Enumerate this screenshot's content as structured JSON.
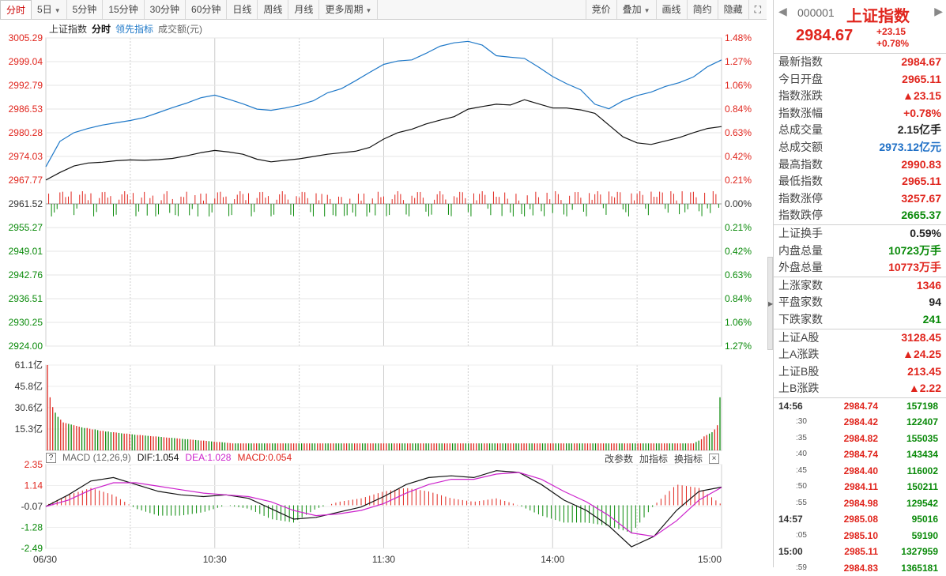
{
  "toolbar": {
    "left": [
      "分时",
      "5日",
      "5分钟",
      "15分钟",
      "30分钟",
      "60分钟",
      "日线",
      "周线",
      "月线",
      "更多周期"
    ],
    "right": [
      "竞价",
      "叠加",
      "画线",
      "简约",
      "隐藏"
    ]
  },
  "legend": {
    "name": "上证指数",
    "mode": "分时",
    "lead": "领先指标",
    "volume": "成交额(元)"
  },
  "macd": {
    "title": "MACD (12,26,9)",
    "dif_label": "DIF:1.054",
    "dea_label": "DEA:1.028",
    "macd_label": "MACD:0.054",
    "tools": [
      "改参数",
      "加指标",
      "换指标"
    ]
  },
  "colors": {
    "up": "#e0251d",
    "down": "#0a8a0a",
    "lead": "#1e78c8",
    "price": "#111111",
    "dea": "#cc22cc"
  },
  "chart_data": [
    {
      "type": "line",
      "title": "上证指数 分时",
      "x_ticks": [
        "06/30",
        "10:30",
        "11:30",
        "14:00",
        "15:00"
      ],
      "price_ticks": [
        "3005.29",
        "2999.04",
        "2992.79",
        "2986.53",
        "2980.28",
        "2974.03",
        "2967.77",
        "2961.52",
        "2955.27",
        "2949.01",
        "2942.76",
        "2936.51",
        "2930.25",
        "2924.00"
      ],
      "pct_ticks": [
        "1.48%",
        "1.27%",
        "1.06%",
        "0.84%",
        "0.63%",
        "0.42%",
        "0.21%",
        "0.00%",
        "0.21%",
        "0.42%",
        "0.63%",
        "0.84%",
        "1.06%",
        "1.27%"
      ],
      "ylim": [
        2924.0,
        3005.29
      ],
      "prev_close": 2961.52,
      "series": [
        {
          "name": "上证指数",
          "points": [
            [
              0,
              2967.8
            ],
            [
              5,
              2969.8
            ],
            [
              10,
              2971.5
            ],
            [
              15,
              2972.3
            ],
            [
              20,
              2972.5
            ],
            [
              25,
              2972.9
            ],
            [
              30,
              2973.1
            ],
            [
              35,
              2973.0
            ],
            [
              40,
              2973.2
            ],
            [
              45,
              2973.5
            ],
            [
              50,
              2974.2
            ],
            [
              55,
              2975.0
            ],
            [
              60,
              2975.6
            ],
            [
              65,
              2975.2
            ],
            [
              70,
              2974.6
            ],
            [
              75,
              2973.3
            ],
            [
              80,
              2972.6
            ],
            [
              85,
              2973.0
            ],
            [
              90,
              2973.4
            ],
            [
              95,
              2974.0
            ],
            [
              100,
              2974.6
            ],
            [
              105,
              2975.0
            ],
            [
              110,
              2975.4
            ],
            [
              115,
              2976.4
            ],
            [
              120,
              2978.6
            ],
            [
              125,
              2980.3
            ],
            [
              130,
              2981.2
            ],
            [
              135,
              2982.6
            ],
            [
              140,
              2983.6
            ],
            [
              145,
              2984.5
            ],
            [
              150,
              2986.5
            ],
            [
              155,
              2987.2
            ],
            [
              160,
              2987.8
            ],
            [
              165,
              2987.6
            ],
            [
              170,
              2989.0
            ],
            [
              175,
              2987.9
            ],
            [
              180,
              2986.8
            ],
            [
              185,
              2986.8
            ],
            [
              190,
              2986.3
            ],
            [
              195,
              2985.4
            ],
            [
              200,
              2982.3
            ],
            [
              205,
              2979.2
            ],
            [
              210,
              2977.6
            ],
            [
              215,
              2977.2
            ],
            [
              220,
              2978.1
            ],
            [
              225,
              2979.0
            ],
            [
              230,
              2980.3
            ],
            [
              235,
              2981.4
            ],
            [
              240,
              2981.9
            ]
          ]
        },
        {
          "name": "领先指标",
          "points": [
            [
              0,
              2971.3
            ],
            [
              5,
              2978.0
            ],
            [
              10,
              2980.3
            ],
            [
              15,
              2981.4
            ],
            [
              20,
              2982.3
            ],
            [
              25,
              2982.9
            ],
            [
              30,
              2983.5
            ],
            [
              35,
              2984.3
            ],
            [
              40,
              2985.6
            ],
            [
              45,
              2986.9
            ],
            [
              50,
              2988.1
            ],
            [
              55,
              2989.5
            ],
            [
              60,
              2990.2
            ],
            [
              65,
              2989.1
            ],
            [
              70,
              2987.9
            ],
            [
              75,
              2986.5
            ],
            [
              80,
              2986.2
            ],
            [
              85,
              2986.8
            ],
            [
              90,
              2987.6
            ],
            [
              95,
              2988.7
            ],
            [
              100,
              2990.8
            ],
            [
              105,
              2991.9
            ],
            [
              110,
              2994.0
            ],
            [
              115,
              2996.2
            ],
            [
              120,
              2998.3
            ],
            [
              125,
              2999.2
            ],
            [
              130,
              2999.5
            ],
            [
              135,
              3001.2
            ],
            [
              140,
              3003.1
            ],
            [
              145,
              3004.0
            ],
            [
              150,
              3004.4
            ],
            [
              155,
              3003.4
            ],
            [
              160,
              3000.6
            ],
            [
              165,
              3000.2
            ],
            [
              170,
              2999.9
            ],
            [
              175,
              2997.6
            ],
            [
              180,
              2995.1
            ],
            [
              185,
              2993.2
            ],
            [
              190,
              2991.6
            ],
            [
              195,
              2987.8
            ],
            [
              200,
              2986.6
            ],
            [
              205,
              2988.7
            ],
            [
              210,
              2990.1
            ],
            [
              215,
              2991.0
            ],
            [
              220,
              2992.5
            ],
            [
              225,
              2993.5
            ],
            [
              230,
              2995.0
            ],
            [
              235,
              2997.7
            ],
            [
              240,
              2999.5
            ]
          ]
        }
      ]
    },
    {
      "type": "bar",
      "title": "成交额",
      "y_ticks": [
        "61.1亿",
        "45.8亿",
        "30.6亿",
        "15.3亿"
      ],
      "ylim": [
        0,
        61.1
      ],
      "unit": "亿",
      "values": [
        61.1,
        38,
        31,
        27,
        24,
        22,
        20,
        19.5,
        19,
        18.5,
        18,
        17.5,
        17,
        16.5,
        16,
        16,
        15.5,
        15,
        15,
        14.5,
        14,
        14,
        13.5,
        13.5,
        13,
        13,
        12.8,
        12.5,
        12.2,
        12,
        12,
        11.8,
        11.5,
        11.2,
        11,
        11,
        10.8,
        10.6,
        10.4,
        10.2,
        10,
        10,
        9.8,
        9.6,
        9.4,
        9.2,
        9,
        9,
        8.8,
        8.6,
        8.4,
        8.2,
        8,
        8,
        7.8,
        7.6,
        7.4,
        7.2,
        7,
        7,
        6.8,
        6.6,
        6.4,
        6.2,
        6,
        6,
        5.8,
        5.6,
        5.4,
        5.2,
        5,
        5,
        5,
        5,
        5,
        5,
        5,
        5,
        5,
        5,
        5,
        5,
        5,
        5,
        5,
        5,
        5,
        5,
        5,
        5,
        5,
        5,
        5,
        5,
        5,
        5,
        5,
        5,
        5,
        5,
        5,
        5,
        5,
        5,
        5,
        5,
        5,
        5,
        5,
        5,
        5,
        5,
        5,
        5,
        5,
        5,
        5,
        5,
        5,
        5,
        5,
        5,
        5,
        5,
        5,
        5,
        5,
        5,
        5,
        5,
        5,
        5,
        5,
        5,
        5,
        5,
        5,
        5,
        5,
        5,
        5,
        5,
        5,
        5,
        5,
        5,
        5,
        5,
        5,
        5,
        5,
        5,
        5,
        5,
        5,
        5,
        5,
        5,
        5,
        5,
        5,
        5,
        5,
        5,
        5,
        5,
        5,
        5,
        5,
        5,
        5,
        5,
        5,
        5,
        5,
        5,
        5,
        5,
        5,
        5,
        5,
        5,
        5,
        5,
        5,
        5,
        5,
        5,
        5,
        5,
        5,
        5,
        5,
        5,
        5,
        5,
        5,
        5,
        5,
        5,
        5,
        5,
        5,
        5,
        5,
        5,
        5,
        5,
        5,
        5,
        5,
        5,
        5,
        5,
        5,
        5,
        5,
        5,
        5,
        5,
        5,
        5,
        5,
        5,
        5,
        5,
        5,
        5,
        5,
        5,
        5,
        5,
        5,
        5,
        5,
        5,
        5,
        5,
        5,
        5,
        5,
        5,
        5,
        5,
        5,
        6,
        7,
        8,
        10,
        11,
        12,
        13,
        15,
        18,
        38
      ]
    },
    {
      "type": "line",
      "title": "MACD",
      "y_ticks": [
        "2.35",
        "1.14",
        "-0.07",
        "-1.28",
        "-2.49"
      ],
      "ylim": [
        -2.49,
        2.35
      ],
      "series": [
        {
          "name": "DIF",
          "points": [
            [
              0,
              -0.07
            ],
            [
              8,
              0.6
            ],
            [
              16,
              1.4
            ],
            [
              24,
              1.6
            ],
            [
              32,
              1.2
            ],
            [
              40,
              0.8
            ],
            [
              48,
              0.6
            ],
            [
              56,
              0.5
            ],
            [
              64,
              0.6
            ],
            [
              72,
              0.4
            ],
            [
              80,
              -0.2
            ],
            [
              88,
              -0.8
            ],
            [
              96,
              -0.7
            ],
            [
              104,
              -0.4
            ],
            [
              112,
              -0.1
            ],
            [
              120,
              0.5
            ],
            [
              128,
              1.2
            ],
            [
              136,
              1.6
            ],
            [
              144,
              1.7
            ],
            [
              152,
              1.6
            ],
            [
              160,
              2.0
            ],
            [
              168,
              1.9
            ],
            [
              176,
              1.2
            ],
            [
              184,
              0.3
            ],
            [
              192,
              -0.3
            ],
            [
              200,
              -1.2
            ],
            [
              208,
              -2.4
            ],
            [
              216,
              -1.8
            ],
            [
              224,
              -0.3
            ],
            [
              232,
              0.8
            ],
            [
              240,
              1.05
            ]
          ]
        },
        {
          "name": "DEA",
          "points": [
            [
              0,
              -0.07
            ],
            [
              8,
              0.3
            ],
            [
              16,
              0.9
            ],
            [
              24,
              1.3
            ],
            [
              32,
              1.3
            ],
            [
              40,
              1.1
            ],
            [
              48,
              0.9
            ],
            [
              56,
              0.7
            ],
            [
              64,
              0.6
            ],
            [
              72,
              0.5
            ],
            [
              80,
              0.2
            ],
            [
              88,
              -0.3
            ],
            [
              96,
              -0.6
            ],
            [
              104,
              -0.5
            ],
            [
              112,
              -0.3
            ],
            [
              120,
              0.1
            ],
            [
              128,
              0.7
            ],
            [
              136,
              1.2
            ],
            [
              144,
              1.5
            ],
            [
              152,
              1.5
            ],
            [
              160,
              1.8
            ],
            [
              168,
              1.9
            ],
            [
              176,
              1.5
            ],
            [
              184,
              0.8
            ],
            [
              192,
              0.2
            ],
            [
              200,
              -0.6
            ],
            [
              208,
              -1.6
            ],
            [
              216,
              -1.8
            ],
            [
              224,
              -0.9
            ],
            [
              232,
              0.3
            ],
            [
              240,
              1.03
            ]
          ]
        }
      ]
    }
  ],
  "side": {
    "code": "000001",
    "name": "上证指数",
    "price": "2984.67",
    "change": "+23.15",
    "change_pct": "+0.78%",
    "group1": [
      {
        "label": "最新指数",
        "value": "2984.67",
        "color": "red"
      },
      {
        "label": "今日开盘",
        "value": "2965.11",
        "color": "red"
      },
      {
        "label": "指数涨跌",
        "value": "▲23.15",
        "color": "red"
      },
      {
        "label": "指数涨幅",
        "value": "+0.78%",
        "color": "red"
      },
      {
        "label": "总成交量",
        "value": "2.15亿手",
        "color": "black"
      },
      {
        "label": "总成交额",
        "value": "2973.12亿元",
        "color": "blue"
      },
      {
        "label": "最高指数",
        "value": "2990.83",
        "color": "red"
      },
      {
        "label": "最低指数",
        "value": "2965.11",
        "color": "red"
      },
      {
        "label": "指数涨停",
        "value": "3257.67",
        "color": "red"
      },
      {
        "label": "指数跌停",
        "value": "2665.37",
        "color": "green"
      }
    ],
    "group2": [
      {
        "label": "上证换手",
        "value": "0.59%",
        "color": "black"
      },
      {
        "label": "内盘总量",
        "value": "10723万手",
        "color": "green"
      },
      {
        "label": "外盘总量",
        "value": "10773万手",
        "color": "red"
      }
    ],
    "group3": [
      {
        "label": "上涨家数",
        "value": "1346",
        "color": "red"
      },
      {
        "label": "平盘家数",
        "value": "94",
        "color": "black"
      },
      {
        "label": "下跌家数",
        "value": "241",
        "color": "green"
      }
    ],
    "group4": [
      {
        "label": "上证A股",
        "value": "3128.45",
        "color": "red"
      },
      {
        "label": "上A涨跌",
        "value": "▲24.25",
        "color": "red"
      },
      {
        "label": "上证B股",
        "value": "213.45",
        "color": "red"
      },
      {
        "label": "上B涨跌",
        "value": "▲2.22",
        "color": "red"
      }
    ],
    "ticks": [
      {
        "t": "14:56",
        "p": "2984.74",
        "v": "157198",
        "hour": true
      },
      {
        "t": ":30",
        "p": "2984.42",
        "v": "122407"
      },
      {
        "t": ":35",
        "p": "2984.82",
        "v": "155035"
      },
      {
        "t": ":40",
        "p": "2984.74",
        "v": "143434"
      },
      {
        "t": ":45",
        "p": "2984.40",
        "v": "116002"
      },
      {
        "t": ":50",
        "p": "2984.11",
        "v": "150211"
      },
      {
        "t": ":55",
        "p": "2984.98",
        "v": "129542"
      },
      {
        "t": "14:57",
        "p": "2985.08",
        "v": "95016",
        "hour": true
      },
      {
        "t": ":05",
        "p": "2985.10",
        "v": "59190"
      },
      {
        "t": "15:00",
        "p": "2985.11",
        "v": "1327959",
        "hour": true
      },
      {
        "t": ":59",
        "p": "2984.83",
        "v": "1365181"
      }
    ]
  }
}
